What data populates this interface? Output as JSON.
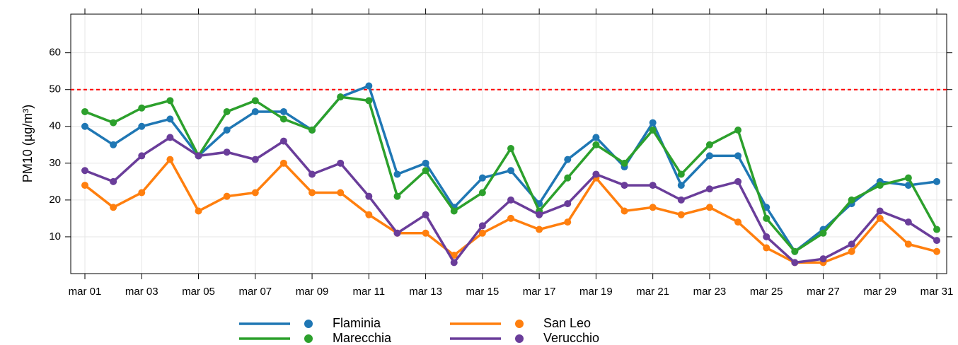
{
  "chart_data": {
    "type": "line",
    "y_label": "PM10 (µg/m³)",
    "categories": [
      "mar 01",
      null,
      "mar 03",
      null,
      "mar 05",
      null,
      "mar 07",
      null,
      "mar 09",
      null,
      "mar 11",
      null,
      "mar 13",
      null,
      "mar 15",
      null,
      "mar 17",
      null,
      "mar 19",
      null,
      "mar 21",
      null,
      "mar 23",
      null,
      "mar 25",
      null,
      "mar 27",
      null,
      "mar 29",
      null,
      "mar 31"
    ],
    "series": [
      {
        "name": "Flaminia",
        "color": "#1f77b4",
        "values": [
          40,
          35,
          40,
          42,
          32,
          39,
          44,
          44,
          39,
          48,
          51,
          27,
          30,
          18,
          26,
          28,
          19,
          31,
          37,
          29,
          41,
          24,
          32,
          32,
          18,
          6,
          12,
          19,
          25,
          24,
          25
        ]
      },
      {
        "name": "Marecchia",
        "color": "#2ca02c",
        "values": [
          44,
          41,
          45,
          47,
          32,
          44,
          47,
          42,
          39,
          48,
          47,
          21,
          28,
          17,
          22,
          34,
          17,
          26,
          35,
          30,
          39,
          27,
          35,
          39,
          15,
          6,
          11,
          20,
          24,
          26,
          12
        ]
      },
      {
        "name": "San Leo",
        "color": "#ff7f0e",
        "values": [
          24,
          18,
          22,
          31,
          17,
          21,
          22,
          30,
          22,
          22,
          16,
          11,
          11,
          5,
          11,
          15,
          12,
          14,
          26,
          17,
          18,
          16,
          18,
          14,
          7,
          3,
          3,
          6,
          15,
          8,
          6
        ]
      },
      {
        "name": "Verucchio",
        "color": "#6a3d9a",
        "values": [
          28,
          25,
          32,
          37,
          32,
          33,
          31,
          36,
          27,
          30,
          21,
          11,
          16,
          3,
          13,
          20,
          16,
          19,
          27,
          24,
          24,
          20,
          23,
          25,
          10,
          3,
          4,
          8,
          17,
          14,
          9
        ]
      }
    ],
    "ylim": [
      0,
      70.5
    ],
    "yticks": [
      10,
      20,
      30,
      40,
      50,
      60
    ],
    "grid": true,
    "threshold": 50,
    "threshold_color": "#ff0000",
    "legend": "bottom"
  }
}
